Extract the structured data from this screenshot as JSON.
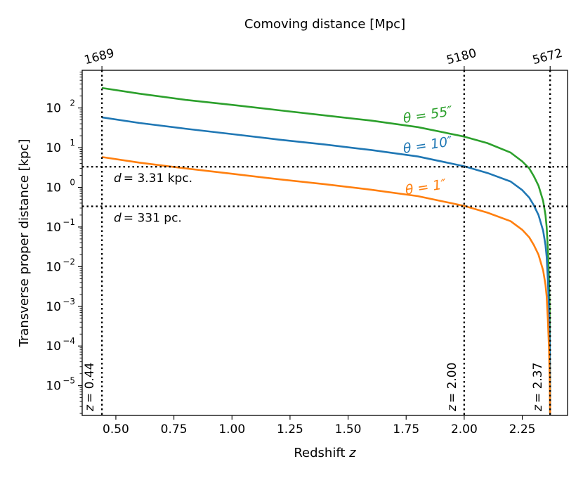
{
  "chart_data": {
    "type": "line",
    "title": "",
    "xlabel_main": "Redshift",
    "xlabel_var": "z",
    "ylabel": "Transverse proper distance [kpc]",
    "top_xlabel": "Comoving distance [Mpc]",
    "xlim": [
      0.355,
      2.445
    ],
    "ylim_log10": [
      -5.75,
      2.95
    ],
    "grid": false,
    "x_ticks": [
      {
        "value": 0.5,
        "label": "0.50"
      },
      {
        "value": 0.75,
        "label": "0.75"
      },
      {
        "value": 1.0,
        "label": "1.00"
      },
      {
        "value": 1.25,
        "label": "1.25"
      },
      {
        "value": 1.5,
        "label": "1.50"
      },
      {
        "value": 1.75,
        "label": "1.75"
      },
      {
        "value": 2.0,
        "label": "2.00"
      },
      {
        "value": 2.25,
        "label": "2.25"
      }
    ],
    "y_ticks": [
      {
        "exp": 2,
        "base": "10",
        "sup": "2"
      },
      {
        "exp": 1,
        "base": "10",
        "sup": "1"
      },
      {
        "exp": 0,
        "base": "10",
        "sup": "0"
      },
      {
        "exp": -1,
        "base": "10",
        "sup": "−1"
      },
      {
        "exp": -2,
        "base": "10",
        "sup": "−2"
      },
      {
        "exp": -3,
        "base": "10",
        "sup": "−3"
      },
      {
        "exp": -4,
        "base": "10",
        "sup": "−4"
      },
      {
        "exp": -5,
        "base": "10",
        "sup": "−5"
      }
    ],
    "top_ticks": [
      {
        "z": 0.44,
        "label": "1689"
      },
      {
        "z": 2.0,
        "label": "5180"
      },
      {
        "z": 2.37,
        "label": "5672"
      }
    ],
    "vlines": [
      {
        "z": 0.44,
        "label_var": "z",
        "label_val": "= 0.44"
      },
      {
        "z": 2.0,
        "label_var": "z",
        "label_val": "= 2.00"
      },
      {
        "z": 2.37,
        "label_var": "z",
        "label_val": "= 2.37"
      }
    ],
    "hlines": [
      {
        "value_kpc": 3.31,
        "label_var": "d",
        "label_val": "= 3.31 kpc."
      },
      {
        "value_kpc": 0.331,
        "label_var": "d",
        "label_val": "= 331 pc."
      }
    ],
    "series": [
      {
        "name": "θ = 55″",
        "label_var": "θ",
        "label_eq": " = ",
        "label_val": "55″",
        "color": "#2ca02c",
        "x": [
          0.44,
          0.6,
          0.8,
          1.0,
          1.2,
          1.4,
          1.6,
          1.8,
          2.0,
          2.1,
          2.2,
          2.25,
          2.28,
          2.3,
          2.32,
          2.34,
          2.35,
          2.355,
          2.36,
          2.365,
          2.368,
          2.37
        ],
        "y": [
          320,
          230,
          160,
          120,
          88,
          65,
          48,
          33,
          19,
          13,
          7.5,
          4.5,
          3.0,
          1.9,
          1.1,
          0.45,
          0.2,
          0.1,
          0.03,
          0.005,
          0.0008,
          2e-06
        ]
      },
      {
        "name": "θ = 10″",
        "label_var": "θ",
        "label_eq": " = ",
        "label_val": "10″",
        "color": "#1f77b4",
        "x": [
          0.44,
          0.6,
          0.8,
          1.0,
          1.2,
          1.4,
          1.6,
          1.8,
          2.0,
          2.1,
          2.2,
          2.25,
          2.28,
          2.3,
          2.32,
          2.34,
          2.35,
          2.355,
          2.36,
          2.365,
          2.368,
          2.37
        ],
        "y": [
          58,
          42,
          30,
          22,
          16,
          12,
          8.7,
          6.0,
          3.4,
          2.3,
          1.4,
          0.85,
          0.55,
          0.35,
          0.2,
          0.08,
          0.035,
          0.018,
          0.005,
          0.0009,
          0.00015,
          2e-06
        ]
      },
      {
        "name": "θ = 1″",
        "label_var": "θ",
        "label_eq": " = ",
        "label_val": "1″",
        "color": "#ff7f0e",
        "x": [
          0.44,
          0.6,
          0.8,
          1.0,
          1.2,
          1.4,
          1.6,
          1.8,
          2.0,
          2.1,
          2.2,
          2.25,
          2.28,
          2.3,
          2.32,
          2.34,
          2.35,
          2.355,
          2.36,
          2.365,
          2.368,
          2.37
        ],
        "y": [
          5.8,
          4.2,
          3.0,
          2.2,
          1.6,
          1.2,
          0.87,
          0.6,
          0.34,
          0.23,
          0.14,
          0.085,
          0.055,
          0.035,
          0.02,
          0.008,
          0.0035,
          0.0018,
          0.0005,
          9e-05,
          1.5e-05,
          2e-06
        ]
      }
    ]
  }
}
